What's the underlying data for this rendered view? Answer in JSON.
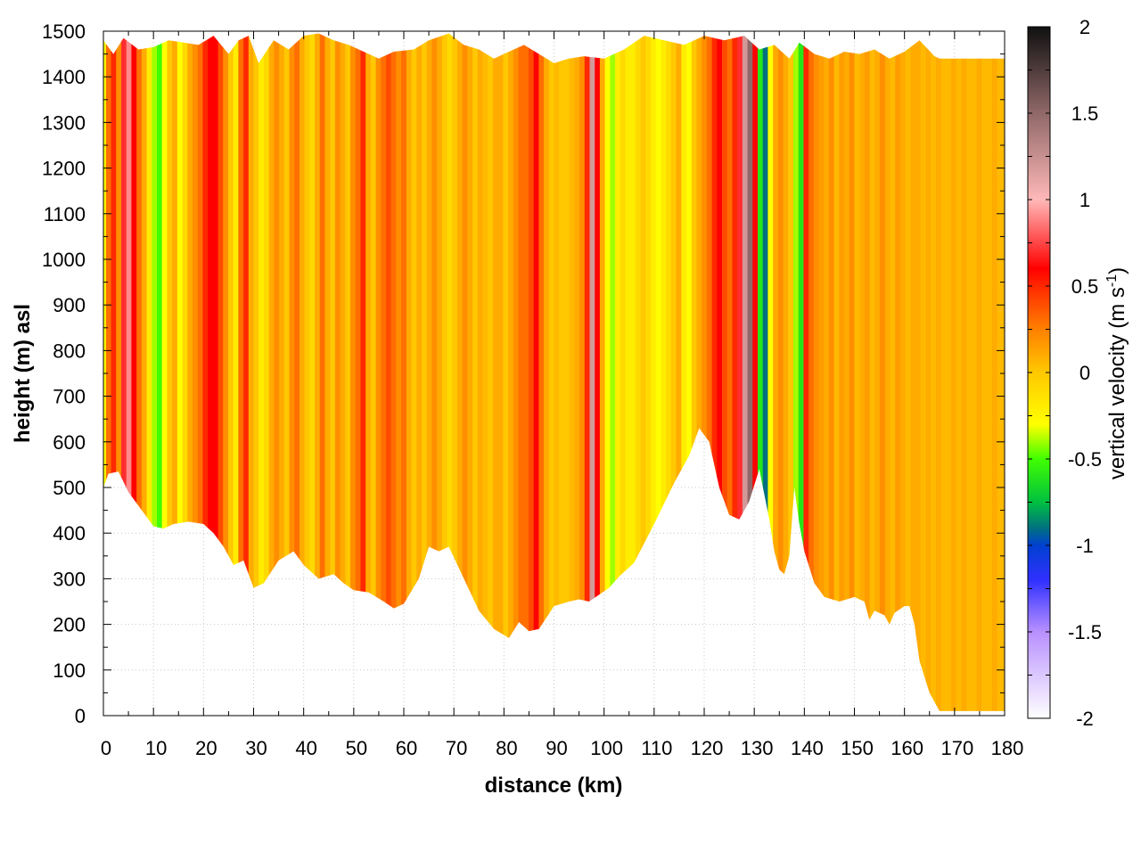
{
  "chart_data": {
    "type": "heatmap",
    "title": "",
    "xlabel": "distance (km)",
    "ylabel": "height (m) asl",
    "xlim": [
      0,
      180
    ],
    "ylim": [
      0,
      1500
    ],
    "grid": true,
    "xticks": [
      "0",
      "10",
      "20",
      "30",
      "40",
      "50",
      "60",
      "70",
      "80",
      "90",
      "100",
      "110",
      "120",
      "130",
      "140",
      "150",
      "160",
      "170",
      "180"
    ],
    "yticks": [
      "0",
      "100",
      "200",
      "300",
      "400",
      "500",
      "600",
      "700",
      "800",
      "900",
      "1000",
      "1100",
      "1200",
      "1300",
      "1400",
      "1500"
    ],
    "colorbar": {
      "label": "vertical velocity (m s",
      "label_sup": "-1",
      "label_end": ")",
      "range": [
        -2,
        2
      ],
      "ticks": [
        "-2",
        "-1.5",
        "-1",
        "-0.5",
        "0",
        "0.5",
        "1",
        "1.5",
        "2"
      ],
      "colormap": [
        [
          -2,
          "#ffffff"
        ],
        [
          -1.5,
          "#b890ff"
        ],
        [
          -1.2,
          "#3030ff"
        ],
        [
          -1.0,
          "#0040d0"
        ],
        [
          -0.9,
          "#007080"
        ],
        [
          -0.75,
          "#00c040"
        ],
        [
          -0.5,
          "#40ff00"
        ],
        [
          -0.3,
          "#ffff00"
        ],
        [
          0,
          "#ffc800"
        ],
        [
          0.25,
          "#ff8000"
        ],
        [
          0.5,
          "#ff2800"
        ],
        [
          0.6,
          "#ff0000"
        ],
        [
          1.0,
          "#ffb8b8"
        ],
        [
          1.5,
          "#906868"
        ],
        [
          2.0,
          "#101010"
        ]
      ]
    },
    "ground_height_m": [
      [
        0,
        500
      ],
      [
        1,
        530
      ],
      [
        3,
        535
      ],
      [
        5,
        490
      ],
      [
        7,
        460
      ],
      [
        10,
        415
      ],
      [
        12,
        410
      ],
      [
        14,
        420
      ],
      [
        17,
        425
      ],
      [
        20,
        420
      ],
      [
        22,
        400
      ],
      [
        24,
        370
      ],
      [
        26,
        330
      ],
      [
        28,
        340
      ],
      [
        30,
        280
      ],
      [
        32,
        290
      ],
      [
        35,
        340
      ],
      [
        38,
        360
      ],
      [
        40,
        330
      ],
      [
        43,
        300
      ],
      [
        46,
        310
      ],
      [
        48,
        290
      ],
      [
        50,
        275
      ],
      [
        53,
        270
      ],
      [
        56,
        250
      ],
      [
        58,
        235
      ],
      [
        60,
        245
      ],
      [
        63,
        300
      ],
      [
        65,
        370
      ],
      [
        67,
        360
      ],
      [
        69,
        370
      ],
      [
        72,
        300
      ],
      [
        75,
        230
      ],
      [
        78,
        190
      ],
      [
        81,
        170
      ],
      [
        83,
        205
      ],
      [
        85,
        185
      ],
      [
        87,
        190
      ],
      [
        90,
        240
      ],
      [
        93,
        250
      ],
      [
        95,
        255
      ],
      [
        97,
        250
      ],
      [
        99,
        265
      ],
      [
        101,
        280
      ],
      [
        103,
        305
      ],
      [
        106,
        335
      ],
      [
        110,
        420
      ],
      [
        114,
        510
      ],
      [
        117,
        570
      ],
      [
        119,
        630
      ],
      [
        121,
        600
      ],
      [
        123,
        500
      ],
      [
        125,
        440
      ],
      [
        127,
        430
      ],
      [
        129,
        470
      ],
      [
        131,
        540
      ],
      [
        133,
        430
      ],
      [
        134,
        360
      ],
      [
        135,
        320
      ],
      [
        136,
        310
      ],
      [
        137,
        350
      ],
      [
        138,
        500
      ],
      [
        139,
        420
      ],
      [
        140,
        360
      ],
      [
        142,
        290
      ],
      [
        144,
        260
      ],
      [
        147,
        250
      ],
      [
        150,
        260
      ],
      [
        152,
        250
      ],
      [
        153,
        210
      ],
      [
        154,
        230
      ],
      [
        156,
        220
      ],
      [
        157,
        200
      ],
      [
        158,
        225
      ],
      [
        160,
        240
      ],
      [
        161,
        240
      ],
      [
        162,
        200
      ],
      [
        163,
        120
      ],
      [
        165,
        50
      ],
      [
        166,
        30
      ],
      [
        167,
        10
      ],
      [
        180,
        10
      ]
    ],
    "top_height_m": [
      [
        0,
        1480
      ],
      [
        2,
        1450
      ],
      [
        4,
        1485
      ],
      [
        7,
        1460
      ],
      [
        10,
        1465
      ],
      [
        13,
        1480
      ],
      [
        16,
        1475
      ],
      [
        19,
        1470
      ],
      [
        22,
        1490
      ],
      [
        25,
        1450
      ],
      [
        27,
        1480
      ],
      [
        29,
        1490
      ],
      [
        31,
        1430
      ],
      [
        34,
        1480
      ],
      [
        37,
        1460
      ],
      [
        40,
        1490
      ],
      [
        43,
        1495
      ],
      [
        46,
        1480
      ],
      [
        49,
        1470
      ],
      [
        52,
        1455
      ],
      [
        55,
        1440
      ],
      [
        58,
        1455
      ],
      [
        62,
        1460
      ],
      [
        65,
        1480
      ],
      [
        69,
        1495
      ],
      [
        72,
        1470
      ],
      [
        75,
        1460
      ],
      [
        78,
        1440
      ],
      [
        81,
        1455
      ],
      [
        84,
        1470
      ],
      [
        87,
        1450
      ],
      [
        90,
        1430
      ],
      [
        93,
        1440
      ],
      [
        96,
        1445
      ],
      [
        100,
        1440
      ],
      [
        104,
        1460
      ],
      [
        108,
        1490
      ],
      [
        112,
        1480
      ],
      [
        116,
        1470
      ],
      [
        120,
        1490
      ],
      [
        124,
        1480
      ],
      [
        128,
        1490
      ],
      [
        131,
        1460
      ],
      [
        134,
        1470
      ],
      [
        137,
        1440
      ],
      [
        139,
        1475
      ],
      [
        142,
        1450
      ],
      [
        145,
        1440
      ],
      [
        148,
        1455
      ],
      [
        151,
        1450
      ],
      [
        154,
        1460
      ],
      [
        157,
        1440
      ],
      [
        160,
        1455
      ],
      [
        163,
        1480
      ],
      [
        166,
        1445
      ],
      [
        167,
        1440
      ],
      [
        180,
        1440
      ]
    ],
    "column_velocity_ms": [
      -0.3,
      0.3,
      0.5,
      0.2,
      0.7,
      0.9,
      0.6,
      0.3,
      0.1,
      -0.2,
      -0.4,
      -0.5,
      -0.3,
      0.0,
      0.1,
      -0.3,
      -0.1,
      0.1,
      0.2,
      0.3,
      0.5,
      0.6,
      0.6,
      0.4,
      0.2,
      0.0,
      -0.2,
      0.3,
      0.5,
      0.1,
      0.0,
      -0.2,
      -0.1,
      0.1,
      0.2,
      0.1,
      0.0,
      0.2,
      0.3,
      0.1,
      0.0,
      -0.1,
      0.1,
      0.3,
      0.1,
      0.0,
      0.2,
      0.1,
      0.0,
      0.2,
      0.3,
      0.5,
      0.1,
      0.0,
      0.2,
      0.3,
      0.4,
      0.3,
      0.2,
      0.3,
      0.1,
      0.0,
      0.1,
      0.0,
      0.1,
      0.2,
      0.1,
      0.0,
      -0.1,
      0.0,
      0.1,
      0.2,
      0.1,
      0.0,
      0.1,
      0.05,
      0.0,
      0.1,
      0.1,
      0.0,
      0.1,
      0.2,
      0.3,
      0.3,
      0.4,
      0.6,
      0.3,
      0.1,
      0.0,
      0.05,
      0.0,
      0.0,
      0.05,
      0.1,
      0.2,
      0.5,
      1.2,
      0.6,
      0.1,
      -0.3,
      -0.4,
      -0.2,
      -0.1,
      -0.2,
      -0.2,
      -0.1,
      0.0,
      -0.1,
      -0.2,
      -0.3,
      -0.2,
      -0.1,
      0.0,
      0.1,
      -0.2,
      -0.3,
      0.0,
      0.1,
      0.2,
      0.3,
      0.5,
      0.6,
      0.4,
      0.3,
      0.5,
      0.7,
      1.2,
      1.5,
      0.6,
      -0.6,
      -0.9,
      -0.3,
      0.1,
      0.2,
      0.1,
      0.0,
      -0.4,
      -0.6,
      0.5,
      0.3,
      0.2,
      0.15,
      0.1,
      0.2,
      0.05,
      0.15,
      0.1,
      0.2,
      0.05,
      0.1,
      0.15,
      0.05,
      0.1,
      0.2,
      0.1,
      0.05,
      0.15,
      0.1,
      0.05,
      0.1,
      0.1,
      0.05,
      0.1,
      0.05,
      0.1,
      0.05,
      0.05,
      0.1,
      0.05,
      0.1,
      0.05,
      0.05,
      0.1,
      0.05,
      0.05,
      0.1,
      0.05,
      0.05
    ]
  }
}
